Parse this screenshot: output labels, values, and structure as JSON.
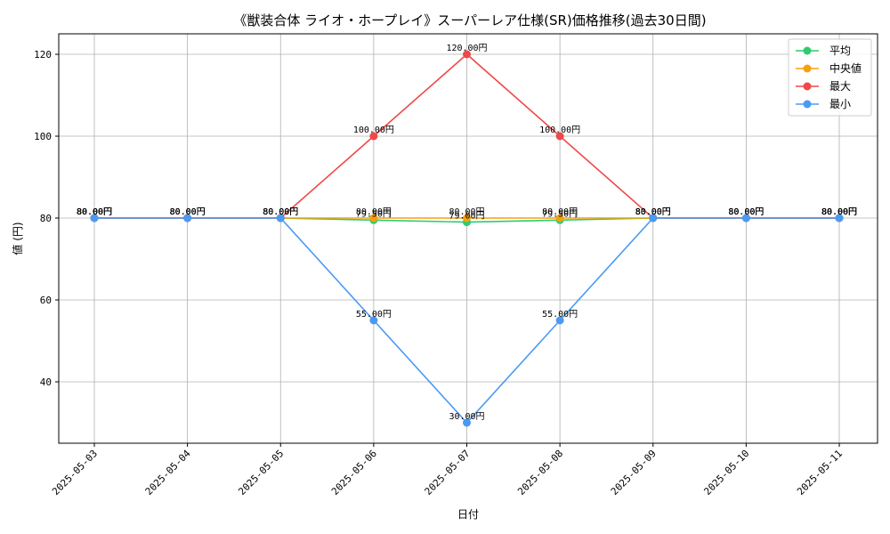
{
  "chart_data": {
    "type": "line",
    "title": "《獣装合体 ライオ・ホープレイ》スーパーレア仕様(SR)価格推移(過去30日間)",
    "xlabel": "日付",
    "ylabel": "値 (円)",
    "categories": [
      "2025-05-03",
      "2025-05-04",
      "2025-05-05",
      "2025-05-06",
      "2025-05-07",
      "2025-05-08",
      "2025-05-09",
      "2025-05-10",
      "2025-05-11"
    ],
    "ylim": [
      25,
      125
    ],
    "yticks": [
      40,
      60,
      80,
      100,
      120
    ],
    "ytick_labels": [
      "40",
      "60",
      "80",
      "100",
      "120"
    ],
    "grid": true,
    "legend_position": "top-right",
    "series": [
      {
        "name": "平均",
        "color": "#2ecc71",
        "values": [
          80,
          80,
          80,
          79.5,
          79,
          79.5,
          80,
          80,
          80
        ],
        "labels": [
          "80.00円",
          "80.00円",
          "80.00円",
          "79.50円",
          "79.00円",
          "79.50円",
          "80.00円",
          "80.00円",
          "80.00円"
        ]
      },
      {
        "name": "中央値",
        "color": "#f5a00f",
        "values": [
          80,
          80,
          80,
          80,
          80,
          80,
          80,
          80,
          80
        ],
        "labels": [
          "80.00円",
          "80.00円",
          "80.00円",
          "80.00円",
          "80.00円",
          "80.00円",
          "80.00円",
          "80.00円",
          "80.00円"
        ]
      },
      {
        "name": "最大",
        "color": "#f04848",
        "values": [
          80,
          80,
          80,
          100,
          120,
          100,
          80,
          80,
          80
        ],
        "labels": [
          "80.00円",
          "80.00円",
          "80.00円",
          "100.00円",
          "120.00円",
          "100.00円",
          "80.00円",
          "80.00円",
          "80.00円"
        ]
      },
      {
        "name": "最小",
        "color": "#4a9af5",
        "values": [
          80,
          80,
          80,
          55,
          30,
          55,
          80,
          80,
          80
        ],
        "labels": [
          "80.00円",
          "80.00円",
          "80.00円",
          "55.00円",
          "30.00円",
          "55.00円",
          "80.00円",
          "80.00円",
          "80.00円"
        ]
      }
    ]
  }
}
